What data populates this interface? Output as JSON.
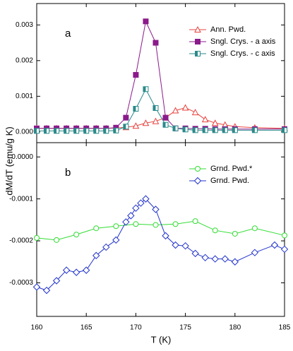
{
  "chart_data": [
    {
      "type": "line",
      "label": "a",
      "ylabel": "dM/dT (emu/g K)",
      "xlim": [
        160,
        185
      ],
      "xticks": [
        160,
        165,
        170,
        175,
        180,
        185
      ],
      "ylim": [
        -0.0003,
        0.0036
      ],
      "yticks": [
        {
          "value": 0,
          "label": "0.000"
        },
        {
          "value": 0.001,
          "label": "0.001"
        },
        {
          "value": 0.002,
          "label": "0.002"
        },
        {
          "value": 0.003,
          "label": "0.003"
        }
      ],
      "series": [
        {
          "name": "Ann. Pwd.",
          "color": "#e8413c",
          "marker": "triangle",
          "x": [
            160,
            161,
            162,
            163,
            164,
            165,
            166,
            167,
            168,
            169,
            170,
            171,
            172,
            173,
            174,
            175,
            176,
            177,
            178,
            179,
            180,
            182,
            185
          ],
          "values": [
            0.0001,
            0.0001,
            0.0001,
            0.0001,
            0.0001,
            0.0001,
            0.0001,
            0.0001,
            0.00011,
            0.00013,
            0.00017,
            0.00025,
            0.0003,
            0.0004,
            0.0006,
            0.00068,
            0.00055,
            0.00035,
            0.00025,
            0.0002,
            0.00015,
            0.00012,
            0.0001
          ]
        },
        {
          "name": "Sngl. Crys. - a axis",
          "color": "#8b1a8b",
          "marker": "square",
          "x": [
            160,
            161,
            162,
            163,
            164,
            165,
            166,
            167,
            168,
            169,
            170,
            171,
            172,
            173,
            174,
            175,
            176,
            177,
            178,
            179,
            180,
            182,
            185
          ],
          "values": [
            0.0001,
            0.0001,
            0.0001,
            0.0001,
            0.0001,
            0.0001,
            0.0001,
            0.0001,
            0.00012,
            0.0004,
            0.0016,
            0.0031,
            0.0025,
            0.0004,
            0.0001,
            0.0001,
            9e-05,
            9e-05,
            8e-05,
            8e-05,
            8e-05,
            8e-05,
            8e-05
          ]
        },
        {
          "name": "Sngl. Crys. - c axis",
          "color": "#2a8a8a",
          "marker": "halfsquare",
          "x": [
            160,
            161,
            162,
            163,
            164,
            165,
            166,
            167,
            168,
            169,
            170,
            171,
            172,
            173,
            174,
            175,
            176,
            177,
            178,
            179,
            180,
            182,
            185
          ],
          "values": [
            3e-05,
            3e-05,
            3e-05,
            3e-05,
            3e-05,
            3e-05,
            3e-05,
            3e-05,
            4e-05,
            0.00015,
            0.00065,
            0.0012,
            0.00067,
            0.0002,
            0.0001,
            7e-05,
            5e-05,
            5e-05,
            5e-05,
            5e-05,
            5e-05,
            5e-05,
            5e-05
          ]
        }
      ]
    },
    {
      "type": "line",
      "label": "b",
      "xlabel": "T (K)",
      "xlim": [
        160,
        185
      ],
      "xticks": [
        160,
        165,
        170,
        175,
        180,
        185
      ],
      "ylim": [
        -0.00038,
        3.4e-05
      ],
      "yticks": [
        {
          "value": 0,
          "label": "0.0000"
        },
        {
          "value": -0.0001,
          "label": "-0.0001"
        },
        {
          "value": -0.0002,
          "label": "-0.0002"
        },
        {
          "value": -0.0003,
          "label": "-0.0003"
        }
      ],
      "series": [
        {
          "name": "Grnd. Pwd.*",
          "color": "#33dd33",
          "marker": "circle",
          "x": [
            160,
            162,
            164,
            166,
            168,
            170,
            172,
            174,
            176,
            178,
            180,
            182,
            185
          ],
          "values": [
            -0.000193,
            -0.000198,
            -0.000185,
            -0.00017,
            -0.000165,
            -0.00016,
            -0.000162,
            -0.00016,
            -0.000153,
            -0.000175,
            -0.000183,
            -0.00017,
            -0.000187
          ]
        },
        {
          "name": "Grnd. Pwd.",
          "color": "#2233cc",
          "marker": "diamond",
          "x": [
            160,
            161,
            162,
            163,
            164,
            165,
            166,
            167,
            168,
            169,
            169.5,
            170,
            170.5,
            171,
            172,
            173,
            174,
            175,
            176,
            177,
            178,
            179,
            180,
            182,
            184,
            185
          ],
          "values": [
            -0.00031,
            -0.000318,
            -0.000295,
            -0.00027,
            -0.000275,
            -0.00027,
            -0.000235,
            -0.000215,
            -0.000198,
            -0.000155,
            -0.00014,
            -0.000122,
            -0.00011,
            -0.0001,
            -0.000125,
            -0.000188,
            -0.00021,
            -0.000212,
            -0.00023,
            -0.00024,
            -0.000243,
            -0.000243,
            -0.00025,
            -0.000228,
            -0.00021,
            -0.00022
          ]
        }
      ]
    }
  ]
}
